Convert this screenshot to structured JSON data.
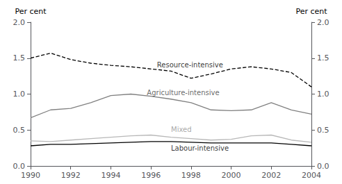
{
  "chart_data": {
    "type": "line",
    "x": [
      1990,
      1991,
      1992,
      1993,
      1994,
      1995,
      1996,
      1997,
      1998,
      1999,
      2000,
      2001,
      2002,
      2003,
      2004
    ],
    "series": [
      {
        "name": "Resource-intensive",
        "color": "#000000",
        "line_style": "dashed",
        "values": [
          1.5,
          1.57,
          1.48,
          1.43,
          1.4,
          1.38,
          1.35,
          1.32,
          1.22,
          1.28,
          1.35,
          1.38,
          1.35,
          1.3,
          1.1
        ]
      },
      {
        "name": "Agriculture-intensive",
        "color": "#808080",
        "line_style": "solid",
        "values": [
          0.67,
          0.78,
          0.8,
          0.88,
          0.98,
          1.0,
          0.97,
          0.93,
          0.88,
          0.78,
          0.77,
          0.78,
          0.88,
          0.78,
          0.72
        ]
      },
      {
        "name": "Mixed",
        "color": "#b8b8b8",
        "line_style": "solid",
        "values": [
          0.35,
          0.34,
          0.36,
          0.38,
          0.4,
          0.42,
          0.43,
          0.4,
          0.38,
          0.36,
          0.37,
          0.42,
          0.43,
          0.36,
          0.33
        ]
      },
      {
        "name": "Labour-intensive",
        "color": "#000000",
        "line_style": "solid",
        "values": [
          0.28,
          0.3,
          0.3,
          0.31,
          0.32,
          0.33,
          0.34,
          0.34,
          0.33,
          0.32,
          0.32,
          0.32,
          0.32,
          0.3,
          0.28
        ]
      }
    ],
    "annotations": [
      {
        "text": "Resource-intensive",
        "x": 1996.3,
        "y": 1.36,
        "color": "#000000"
      },
      {
        "text": "Agriculture-intensive",
        "x": 1995.8,
        "y": 0.97,
        "color": "#404040"
      },
      {
        "text": "Mixed",
        "x": 1997.0,
        "y": 0.46,
        "color": "#909090"
      },
      {
        "text": "Labour-intensive",
        "x": 1997.0,
        "y": 0.2,
        "color": "#000000"
      }
    ],
    "ylabel": "Per cent",
    "y2label": "Per cent",
    "xlim": [
      1990,
      2004
    ],
    "xticks": [
      1990,
      1992,
      1994,
      1996,
      1998,
      2000,
      2002,
      2004
    ],
    "ylim": [
      0.0,
      2.0
    ],
    "yticks": [
      {
        "value": 0,
        "label": "0.0"
      },
      0.5,
      {
        "value": 1,
        "label": "1.0"
      },
      1.5,
      {
        "value": 2,
        "label": "2.0"
      }
    ],
    "y2lim": [
      0.0,
      2.0
    ],
    "y2ticks": [
      {
        "value": 0,
        "label": "0.0"
      },
      0.5,
      {
        "value": 1,
        "label": "1.0"
      },
      1.5,
      {
        "value": 2,
        "label": "2.0"
      }
    ],
    "grid": false
  }
}
